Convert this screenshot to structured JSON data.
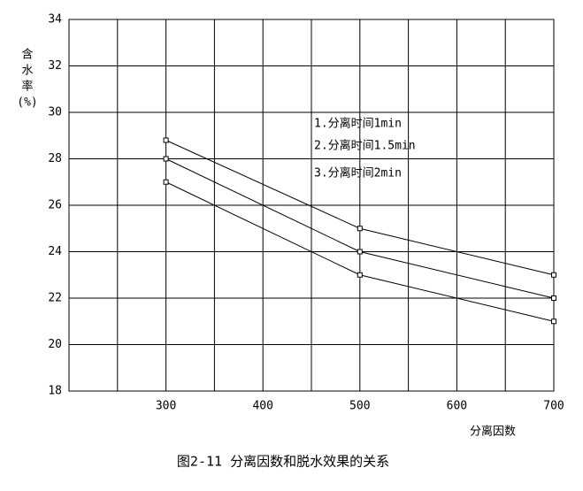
{
  "chart_data": {
    "type": "line",
    "caption": "图2-11  分离因数和脱水效果的关系",
    "xlabel": "分离因数",
    "ylabel": [
      "含",
      "水",
      "率",
      "(%)"
    ],
    "xlim": [
      200,
      700
    ],
    "xticks": [
      300,
      400,
      500,
      600,
      700
    ],
    "x_minor_grid": [
      250,
      350,
      450,
      550,
      650
    ],
    "ylim": [
      18,
      34
    ],
    "yticks": [
      18,
      20,
      22,
      24,
      26,
      28,
      30,
      32,
      34
    ],
    "grid": true,
    "x": [
      300,
      500,
      700
    ],
    "series": [
      {
        "name": "1.分离时间1min",
        "color": "#000000",
        "values": [
          28.8,
          25,
          23
        ]
      },
      {
        "name": "2.分离时间1.5min",
        "color": "#000000",
        "values": [
          28,
          24,
          22
        ]
      },
      {
        "name": "3.分离时间2min",
        "color": "#000000",
        "values": [
          27,
          23,
          21
        ]
      }
    ]
  }
}
